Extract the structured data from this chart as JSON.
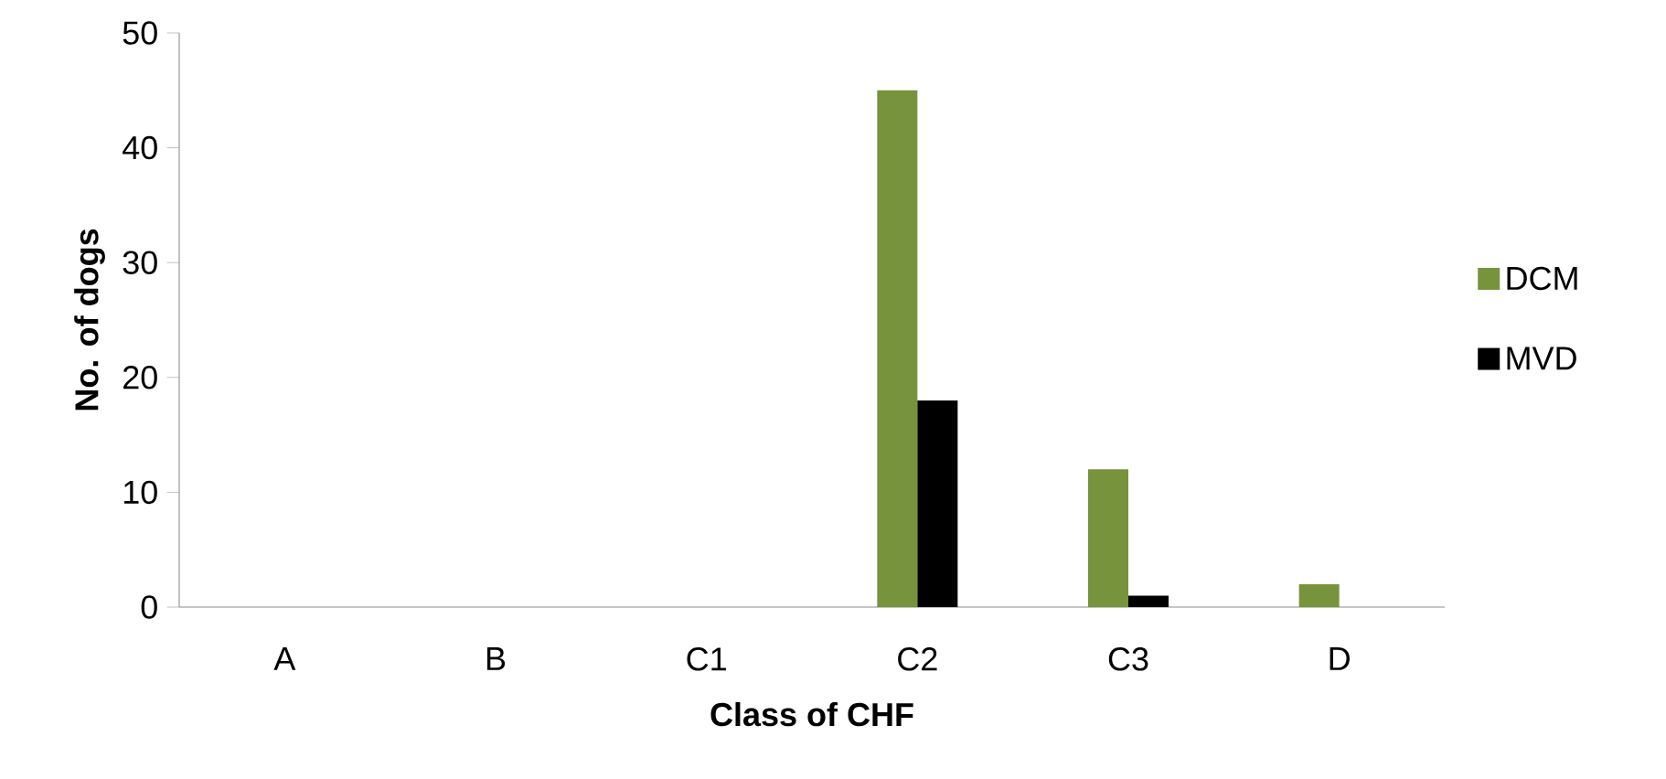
{
  "chart_data": {
    "type": "bar",
    "xlabel": "Class of CHF",
    "ylabel": "No. of dogs",
    "categories": [
      "A",
      "B",
      "C1",
      "C2",
      "C3",
      "D"
    ],
    "series": [
      {
        "name": "DCM",
        "color": "#77933c",
        "values": [
          0,
          0,
          0,
          45,
          12,
          2
        ]
      },
      {
        "name": "MVD",
        "color": "#000000",
        "values": [
          0,
          0,
          0,
          18,
          1,
          0
        ]
      }
    ],
    "ylim": [
      0,
      50
    ],
    "yticks": [
      0,
      10,
      20,
      30,
      40,
      50
    ],
    "grid": false,
    "legend": "right"
  }
}
